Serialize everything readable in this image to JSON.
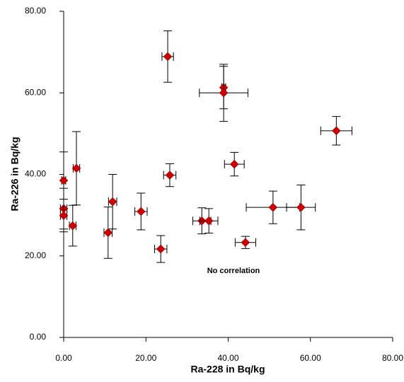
{
  "chart_data": {
    "type": "scatter",
    "x_label": "Ra-228 in Bq/kg",
    "y_label": "Ra-226 in Bq/kg",
    "annotation": "No correlation",
    "marker_color": "#cc0000",
    "xlim": [
      0,
      80
    ],
    "ylim": [
      0,
      80
    ],
    "xticks": [
      {
        "value": 0,
        "label": "0.00"
      },
      {
        "value": 20,
        "label": "20.00"
      },
      {
        "value": 40,
        "label": "40.00"
      },
      {
        "value": 60,
        "label": "60.00"
      },
      {
        "value": 80,
        "label": "80.00"
      }
    ],
    "yticks": [
      {
        "value": 0,
        "label": "0.00"
      },
      {
        "value": 20,
        "label": "20.00"
      },
      {
        "value": 40,
        "label": "40.00"
      },
      {
        "value": 60,
        "label": "60.00"
      },
      {
        "value": 80,
        "label": "80.00"
      }
    ],
    "x": [
      25.3,
      38.9,
      38.9,
      66.3,
      3.1,
      0,
      41.5,
      25.8,
      11.9,
      0,
      0,
      2.2,
      10.8,
      18.8,
      23.6,
      33.6,
      35.3,
      50.9,
      57.7,
      44.2
    ],
    "y": [
      68.9,
      61.3,
      60.0,
      50.7,
      41.5,
      38.5,
      42.5,
      39.8,
      33.3,
      31.6,
      29.9,
      27.4,
      25.7,
      30.9,
      21.7,
      28.6,
      28.6,
      31.9,
      31.9,
      23.3
    ],
    "xerr": [
      1.4,
      0.5,
      5.9,
      3.8,
      0.8,
      0.5,
      2.4,
      1.5,
      1.0,
      0.8,
      0.8,
      0.8,
      1.0,
      1.5,
      1.5,
      2.2,
      2.2,
      6.5,
      3.5,
      2.5
    ],
    "yerr": [
      6.3,
      5.2,
      7.0,
      3.5,
      9.0,
      7.0,
      2.9,
      2.8,
      6.7,
      5.0,
      4.0,
      5.0,
      6.3,
      4.5,
      3.3,
      3.2,
      3.0,
      4.0,
      5.5,
      1.5
    ]
  }
}
